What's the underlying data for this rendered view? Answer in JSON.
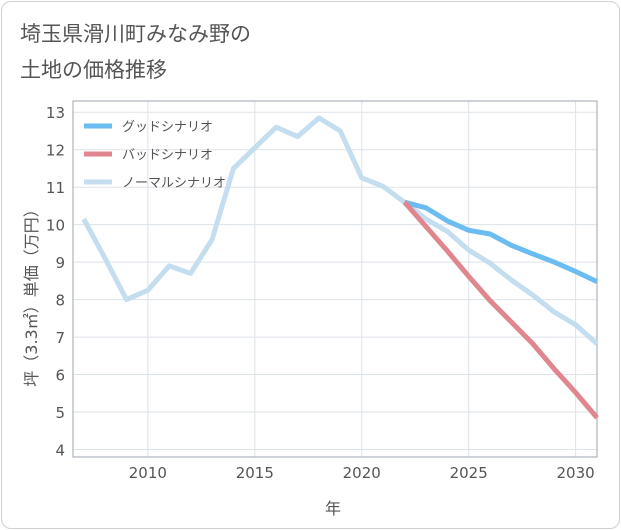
{
  "title_lines": [
    "埼玉県滑川町みなみ野の",
    "土地の価格推移"
  ],
  "chart_data": {
    "type": "line",
    "xlabel": "年",
    "ylabel": "坪（3.3㎡）単価（万円）",
    "xlim": [
      2006.5,
      2031
    ],
    "ylim": [
      3.8,
      13.3
    ],
    "xticks": [
      2010,
      2015,
      2020,
      2025,
      2030
    ],
    "yticks": [
      4,
      5,
      6,
      7,
      8,
      9,
      10,
      11,
      12,
      13
    ],
    "grid": true,
    "legend_position": "top-left",
    "series": [
      {
        "name": "グッドシナリオ",
        "color": "#6bbcf0",
        "x": [
          2022,
          2023,
          2024,
          2025,
          2026,
          2027,
          2028,
          2029,
          2030,
          2031
        ],
        "y": [
          10.6,
          10.45,
          10.1,
          9.85,
          9.75,
          9.45,
          9.22,
          9.0,
          8.75,
          8.48
        ]
      },
      {
        "name": "バッドシナリオ",
        "color": "#e0868e",
        "x": [
          2022,
          2023,
          2024,
          2025,
          2026,
          2027,
          2028,
          2029,
          2030,
          2031
        ],
        "y": [
          10.6,
          9.95,
          9.3,
          8.62,
          7.97,
          7.4,
          6.82,
          6.15,
          5.52,
          4.85
        ]
      },
      {
        "name": "ノーマルシナリオ",
        "color": "#c4def0",
        "x": [
          2007,
          2008,
          2009,
          2010,
          2011,
          2012,
          2013,
          2014,
          2015,
          2016,
          2017,
          2018,
          2019,
          2020,
          2021,
          2022,
          2023,
          2024,
          2025,
          2026,
          2027,
          2028,
          2029,
          2030,
          2031
        ],
        "y": [
          10.15,
          9.1,
          8.0,
          8.25,
          8.9,
          8.7,
          9.6,
          11.5,
          12.05,
          12.6,
          12.35,
          12.85,
          12.5,
          11.25,
          11.02,
          10.6,
          10.15,
          9.82,
          9.32,
          8.97,
          8.52,
          8.12,
          7.67,
          7.33,
          6.82
        ]
      }
    ]
  }
}
